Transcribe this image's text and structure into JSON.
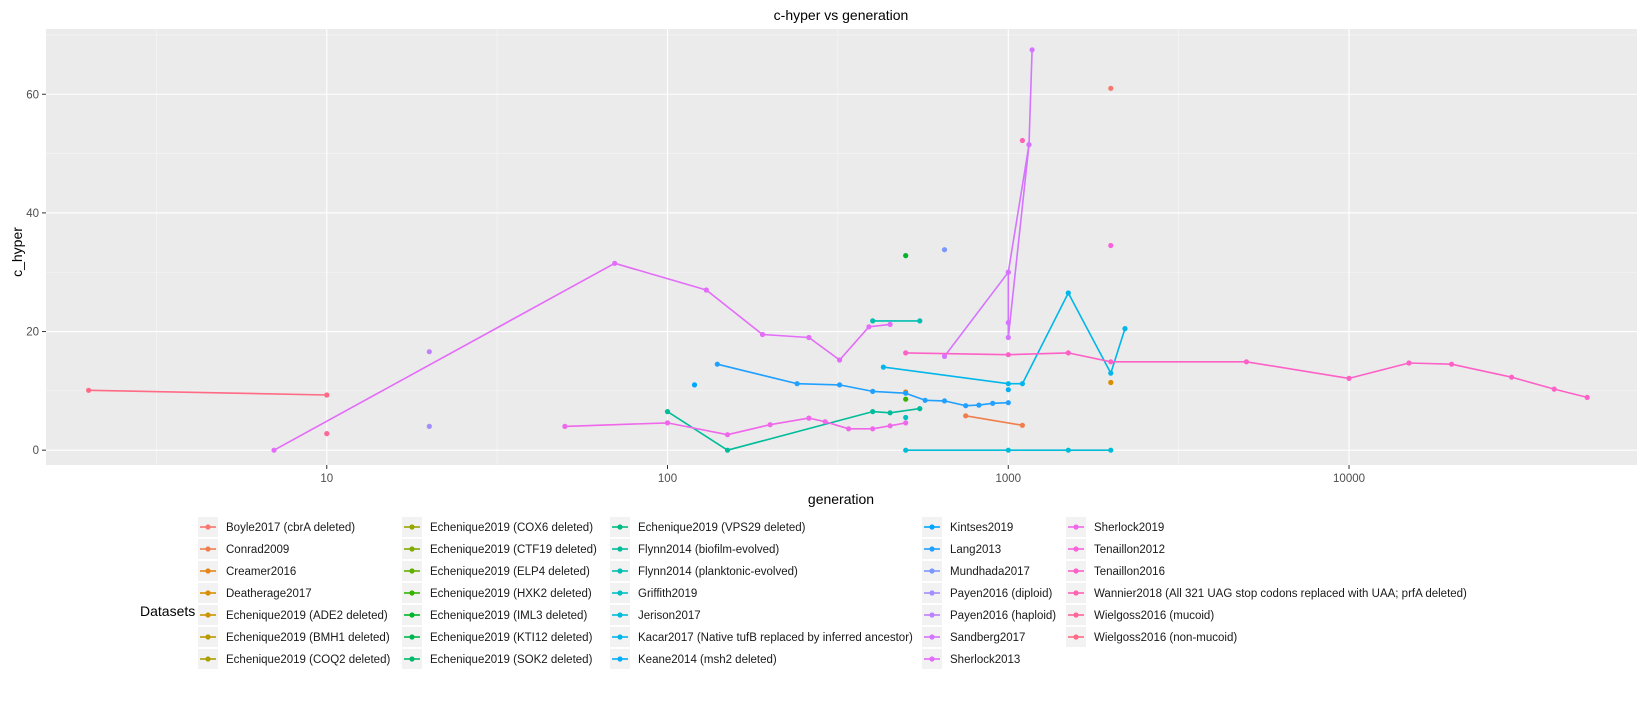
{
  "chart_data": {
    "type": "line",
    "title": "c-hyper vs generation",
    "xlabel": "generation",
    "ylabel": "c_hyper",
    "x_scale": "log10",
    "xlim": [
      1.5,
      70000
    ],
    "ylim": [
      -2.5,
      71
    ],
    "x_ticks": [
      10,
      100,
      1000,
      10000
    ],
    "x_tick_labels": [
      "10",
      "100",
      "1000",
      "10000"
    ],
    "y_ticks": [
      0,
      20,
      40,
      60
    ],
    "y_tick_labels": [
      "0",
      "20",
      "40",
      "60"
    ],
    "grid": true,
    "legend_title": "Datasets",
    "legend_position": "bottom",
    "series": [
      {
        "name": "Boyle2017 (cbrA deleted)",
        "color": "#F8766D",
        "points": [
          [
            2000,
            61
          ]
        ]
      },
      {
        "name": "Conrad2009",
        "color": "#F07E4C",
        "points": [
          [
            750,
            5.8
          ],
          [
            1100,
            4.2
          ]
        ]
      },
      {
        "name": "Creamer2016",
        "color": "#E6861A",
        "points": [
          [
            500,
            9.8
          ]
        ]
      },
      {
        "name": "Deatherage2017",
        "color": "#D98D00",
        "points": [
          [
            2000,
            11.4
          ]
        ]
      },
      {
        "name": "Echenique2019 (ADE2 deleted)",
        "color": "#CB9400",
        "points": []
      },
      {
        "name": "Echenique2019 (BMH1 deleted)",
        "color": "#BB9A00",
        "points": []
      },
      {
        "name": "Echenique2019 (COQ2 deleted)",
        "color": "#AAA000",
        "points": []
      },
      {
        "name": "Echenique2019 (COX6 deleted)",
        "color": "#97A500",
        "points": []
      },
      {
        "name": "Echenique2019 (CTF19 deleted)",
        "color": "#80AA00",
        "points": []
      },
      {
        "name": "Echenique2019 (ELP4 deleted)",
        "color": "#63AF00",
        "points": []
      },
      {
        "name": "Echenique2019 (HXK2 deleted)",
        "color": "#35B300",
        "points": [
          [
            500,
            8.6
          ]
        ]
      },
      {
        "name": "Echenique2019 (IML3 deleted)",
        "color": "#00B42C",
        "points": [
          [
            500,
            32.8
          ]
        ]
      },
      {
        "name": "Echenique2019 (KTI12 deleted)",
        "color": "#00B64E",
        "points": []
      },
      {
        "name": "Echenique2019 (SOK2 deleted)",
        "color": "#00B86A",
        "points": []
      },
      {
        "name": "Echenique2019 (VPS29 deleted)",
        "color": "#00BA83",
        "points": []
      },
      {
        "name": "Flynn2014 (biofilm-evolved)",
        "color": "#00BC9A",
        "points": [
          [
            100,
            6.5
          ],
          [
            150,
            0
          ],
          [
            400,
            6.5
          ],
          [
            450,
            6.3
          ],
          [
            550,
            7.0
          ]
        ]
      },
      {
        "name": "Flynn2014 (planktonic-evolved)",
        "color": "#00BEB0",
        "points": [
          [
            400,
            21.8
          ],
          [
            550,
            21.8
          ]
        ]
      },
      {
        "name": "Griffith2019",
        "color": "#00BFC4",
        "points": [
          [
            500,
            5.5
          ]
        ]
      },
      {
        "name": "Jerison2017",
        "color": "#00BCD8",
        "points": [
          [
            500,
            0
          ],
          [
            1000,
            0
          ],
          [
            1500,
            0
          ],
          [
            2000,
            0
          ]
        ]
      },
      {
        "name": "Kacar2017 (Native tufB replaced by inferred ancestor)",
        "color": "#00B6EA",
        "points": [
          [
            430,
            14
          ],
          [
            1000,
            11.2
          ],
          [
            1100,
            11.2
          ],
          [
            1500,
            26.5
          ],
          [
            2000,
            13
          ],
          [
            2200,
            20.5
          ]
        ]
      },
      {
        "name": "Keane2014 (msh2 deleted)",
        "color": "#00AEF9",
        "points": [
          [
            1000,
            10.2
          ]
        ]
      },
      {
        "name": "Kintses2019",
        "color": "#00A5FF",
        "points": [
          [
            120,
            11
          ]
        ]
      },
      {
        "name": "Lang2013",
        "color": "#20A0FF",
        "points": [
          [
            140,
            14.5
          ],
          [
            240,
            11.2
          ],
          [
            320,
            11.0
          ],
          [
            400,
            9.9
          ],
          [
            500,
            9.6
          ],
          [
            570,
            8.4
          ],
          [
            650,
            8.3
          ],
          [
            750,
            7.5
          ],
          [
            820,
            7.6
          ],
          [
            900,
            7.9
          ],
          [
            1000,
            8.0
          ]
        ]
      },
      {
        "name": "Mundhada2017",
        "color": "#7B97FF",
        "points": [
          [
            650,
            33.8
          ]
        ]
      },
      {
        "name": "Payen2016 (diploid)",
        "color": "#A38DFF",
        "points": [
          [
            20,
            4
          ]
        ]
      },
      {
        "name": "Payen2016 (haploid)",
        "color": "#BE80FF",
        "points": [
          [
            20,
            16.6
          ]
        ]
      },
      {
        "name": "Sandberg2017",
        "color": "#D474FF",
        "points": [
          [
            1000,
            30
          ],
          [
            1000,
            21.5
          ],
          [
            1000,
            19
          ],
          [
            1150,
            51.5
          ],
          [
            1175,
            67.5
          ],
          [
            1150,
            51.5
          ],
          [
            1000,
            30
          ],
          [
            650,
            15.8
          ]
        ]
      },
      {
        "name": "Sherlock2013",
        "color": "#E36CF8",
        "points": [
          [
            7,
            0
          ],
          [
            70,
            31.5
          ],
          [
            130,
            27
          ],
          [
            190,
            19.5
          ],
          [
            260,
            19
          ],
          [
            320,
            15.2
          ],
          [
            390,
            20.8
          ],
          [
            450,
            21.2
          ]
        ]
      },
      {
        "name": "Sherlock2019",
        "color": "#EF67EA",
        "points": [
          [
            50,
            4
          ],
          [
            100,
            4.6
          ],
          [
            150,
            2.6
          ],
          [
            200,
            4.3
          ],
          [
            260,
            5.4
          ],
          [
            290,
            4.8
          ],
          [
            340,
            3.6
          ],
          [
            400,
            3.6
          ],
          [
            450,
            4.1
          ],
          [
            500,
            4.6
          ]
        ]
      },
      {
        "name": "Tenaillon2012",
        "color": "#F862DA",
        "points": [
          [
            2000,
            34.5
          ]
        ]
      },
      {
        "name": "Tenaillon2016",
        "color": "#FD61C7",
        "points": [
          [
            500,
            16.4
          ],
          [
            1000,
            16.1
          ],
          [
            1500,
            16.4
          ],
          [
            2000,
            14.9
          ],
          [
            5000,
            14.9
          ],
          [
            10000,
            12.1
          ],
          [
            15000,
            14.7
          ],
          [
            20000,
            14.5
          ],
          [
            30000,
            12.3
          ],
          [
            40000,
            10.3
          ],
          [
            50000,
            8.9
          ]
        ]
      },
      {
        "name": "Wannier2018 (All 321 UAG stop codons replaced with UAA; prfA deleted)",
        "color": "#FF63B2",
        "points": [
          [
            1100,
            52.2
          ]
        ]
      },
      {
        "name": "Wielgoss2016 (mucoid)",
        "color": "#FF669C",
        "points": [
          [
            10,
            2.8
          ]
        ]
      },
      {
        "name": "Wielgoss2016 (non-mucoid)",
        "color": "#FF6B84",
        "points": [
          [
            2,
            10.1
          ],
          [
            10,
            9.3
          ]
        ]
      }
    ]
  }
}
